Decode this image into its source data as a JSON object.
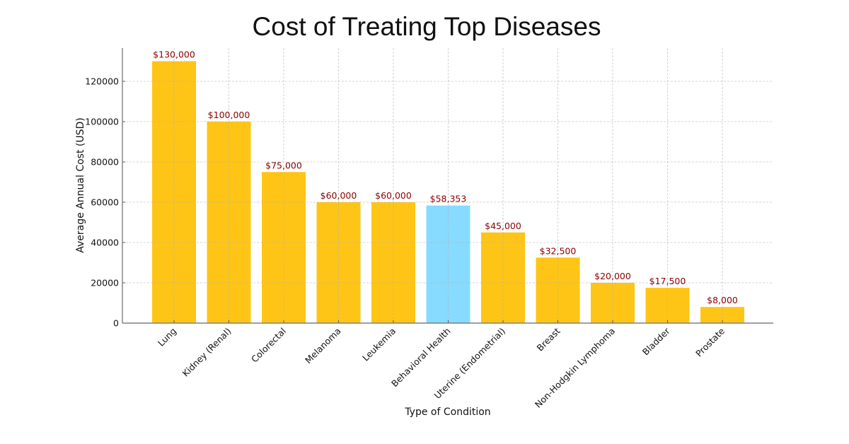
{
  "chart_data": {
    "type": "bar",
    "title": "Cost of Treating Top Diseases",
    "xlabel": "Type of Condition",
    "ylabel": "Average Annual Cost (USD)",
    "categories": [
      "Lung",
      "Kidney (Renal)",
      "Colorectal",
      "Melanoma",
      "Leukemia",
      "Behavioral Health",
      "Uterine (Endometrial)",
      "Breast",
      "Non-Hodgkin Lymphoma",
      "Bladder",
      "Prostate"
    ],
    "values": [
      130000,
      100000,
      75000,
      60000,
      60000,
      58353,
      45000,
      32500,
      20000,
      17500,
      8000
    ],
    "data_labels": [
      "$130,000",
      "$100,000",
      "$75,000",
      "$60,000",
      "$60,000",
      "$58,353",
      "$45,000",
      "$32,500",
      "$20,000",
      "$17,500",
      "$8,000"
    ],
    "highlight_category": "Behavioral Health",
    "colors": {
      "default_bar": "#ffc516",
      "highlight_bar": "#87dbff",
      "data_label": "#8b0000"
    },
    "yticks": [
      0,
      20000,
      40000,
      60000,
      80000,
      100000,
      120000
    ],
    "ytick_labels": [
      "0",
      "20000",
      "40000",
      "60000",
      "80000",
      "100000",
      "120000"
    ],
    "ylim": [
      0,
      136500
    ],
    "grid": true,
    "legend": "none"
  }
}
